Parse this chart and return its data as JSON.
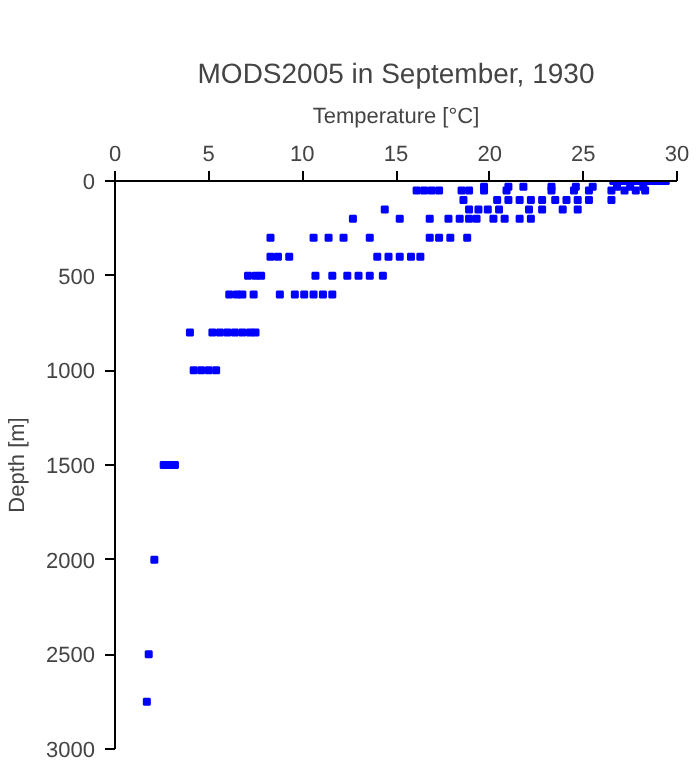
{
  "chart_data": {
    "type": "scatter",
    "title": "MODS2005 in September, 1930",
    "xlabel": "Temperature [°C]",
    "ylabel": "Depth [m]",
    "xlim": [
      0,
      30
    ],
    "ylim": [
      3000,
      0
    ],
    "xticks": [
      0,
      5,
      10,
      15,
      20,
      25,
      30
    ],
    "yticks": [
      0,
      500,
      1000,
      1500,
      2000,
      2500,
      3000
    ],
    "grid": false,
    "marker": "square",
    "series": [
      {
        "color": "#0000ff",
        "x": [
          26.6,
          27,
          27.3,
          27.6,
          27.9,
          28.2,
          28.5,
          28.8,
          29.1,
          29.4,
          19.7,
          21.0,
          21.8,
          23.3,
          24.6,
          25.5,
          26.8,
          27.5,
          28.2,
          16.1,
          16.5,
          16.9,
          17.3,
          18.5,
          18.9,
          19.7,
          20.9,
          23.3,
          24.5,
          25.3,
          26.5,
          27.2,
          27.8,
          28.3,
          18.6,
          20.4,
          21,
          21.6,
          22.2,
          22.8,
          23.5,
          24.1,
          24.7,
          25.3,
          26.5,
          14.4,
          18.9,
          19.4,
          19.9,
          20.5,
          22.1,
          22.8,
          23.9,
          24.7,
          12.7,
          15.2,
          16.8,
          17.8,
          18.4,
          18.9,
          19.3,
          20.2,
          20.8,
          21.6,
          22.2,
          8.3,
          10.6,
          11.4,
          12.2,
          13.6,
          16.8,
          17.3,
          17.9,
          18.8,
          8.3,
          8.7,
          9.3,
          14.0,
          14.6,
          15.2,
          15.8,
          16.3,
          7.1,
          7.5,
          7.8,
          10.7,
          11.6,
          12.4,
          13.0,
          13.6,
          14.3,
          6.1,
          6.5,
          6.8,
          7.4,
          8.8,
          9.6,
          10.1,
          10.6,
          11.1,
          11.6,
          4.0,
          5.2,
          5.6,
          6.0,
          6.4,
          6.8,
          7.2,
          7.5,
          4.2,
          4.6,
          5.0,
          5.4,
          2.6,
          2.9,
          3.2,
          2.1,
          1.8,
          1.7
        ],
        "values": [
          0,
          0,
          0,
          0,
          0,
          0,
          0,
          0,
          0,
          0,
          30,
          30,
          30,
          30,
          30,
          30,
          30,
          30,
          30,
          50,
          50,
          50,
          50,
          50,
          50,
          50,
          50,
          50,
          50,
          50,
          50,
          50,
          50,
          50,
          100,
          100,
          100,
          100,
          100,
          100,
          100,
          100,
          100,
          100,
          100,
          150,
          150,
          150,
          150,
          150,
          150,
          150,
          150,
          150,
          200,
          200,
          200,
          200,
          200,
          200,
          200,
          200,
          200,
          200,
          200,
          300,
          300,
          300,
          300,
          300,
          300,
          300,
          300,
          300,
          400,
          400,
          400,
          400,
          400,
          400,
          400,
          400,
          500,
          500,
          500,
          500,
          500,
          500,
          500,
          500,
          500,
          600,
          600,
          600,
          600,
          600,
          600,
          600,
          600,
          600,
          600,
          800,
          800,
          800,
          800,
          800,
          800,
          800,
          800,
          1000,
          1000,
          1000,
          1000,
          1500,
          1500,
          1500,
          2000,
          2500,
          2750
        ]
      }
    ]
  }
}
